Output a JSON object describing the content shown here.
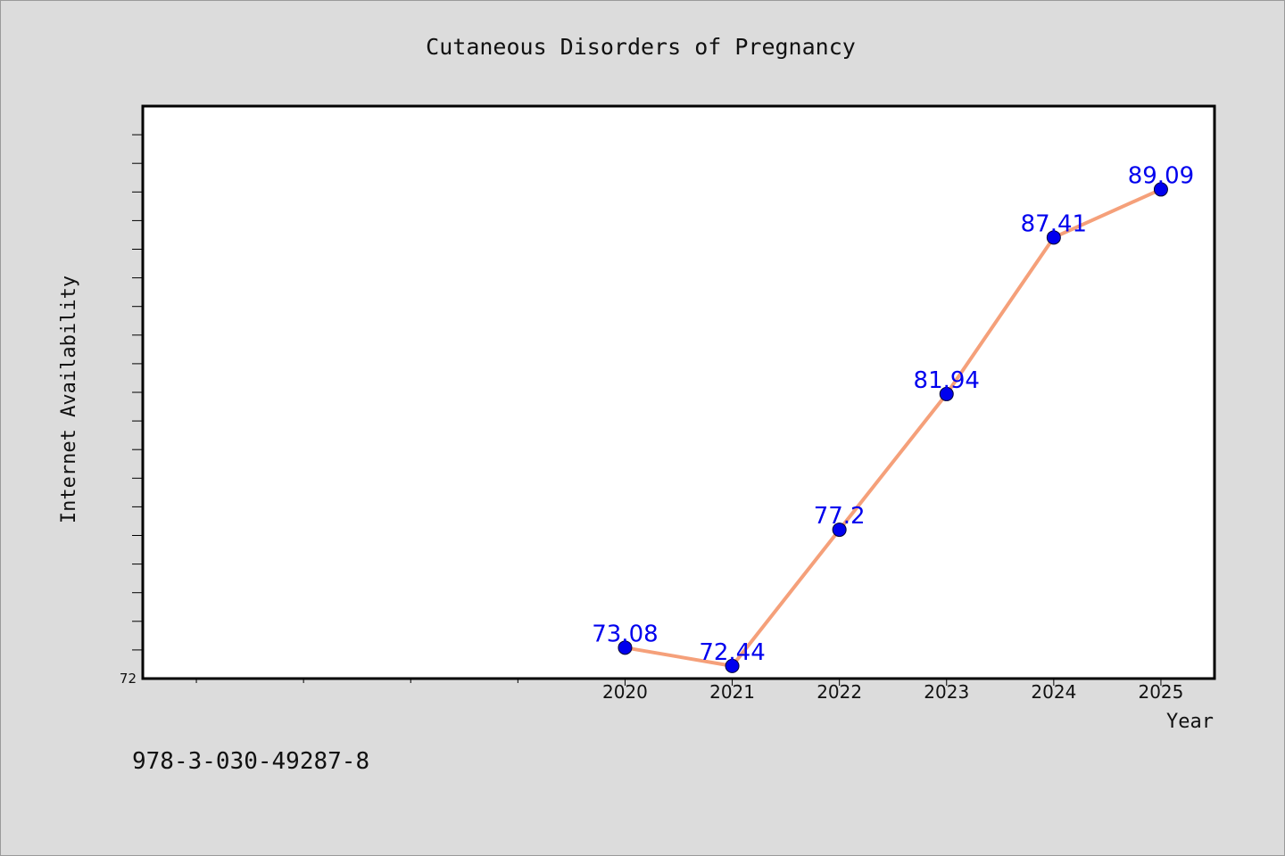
{
  "chart_data": {
    "type": "line",
    "title": "Cutaneous Disorders of Pregnancy",
    "xlabel": "Year",
    "ylabel": "Internet Availability",
    "x": [
      2020,
      2021,
      2022,
      2023,
      2024,
      2025
    ],
    "x_ticks": [
      "2020",
      "2021",
      "2022",
      "2023",
      "2024",
      "2025"
    ],
    "xlim": [
      2015.5,
      2025.5
    ],
    "ylim": [
      72,
      92
    ],
    "y_tick_labels": [
      "72"
    ],
    "grid": false,
    "series": [
      {
        "values": [
          73.08,
          72.44,
          77.2,
          81.94,
          87.41,
          89.09
        ],
        "labels": [
          "73.08",
          "72.44",
          "77.2",
          "81.94",
          "87.41",
          "89.09"
        ],
        "line_color": "#f5a07a",
        "marker_color": "#0000ee",
        "label_color": "#0000ee"
      }
    ]
  },
  "footer": {
    "isbn": "978-3-030-49287-8"
  },
  "colors": {
    "background": "#dcdcdc",
    "plot_background": "#ffffff",
    "axis": "#000000"
  }
}
